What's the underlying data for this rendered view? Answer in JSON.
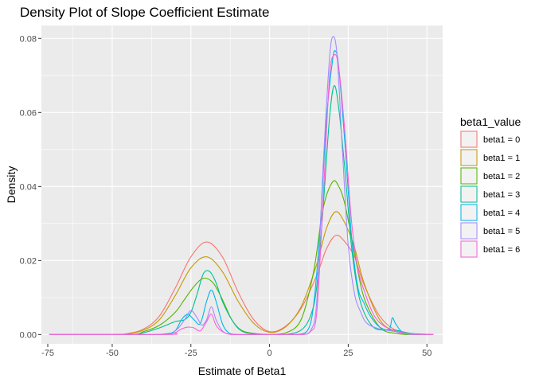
{
  "chart_data": {
    "type": "line",
    "title": "Density Plot of Slope Coefficient Estimate",
    "xlabel": "Estimate of Beta1",
    "ylabel": "Density",
    "xlim": [
      -72.5,
      55
    ],
    "ylim": [
      -0.0025,
      0.0835
    ],
    "x_ticks": [
      -75,
      -50,
      -25,
      0,
      25,
      50
    ],
    "y_ticks": [
      0,
      0.02,
      0.04,
      0.06,
      0.08
    ],
    "x_tick_labels": [
      "-75",
      "-50",
      "-25",
      "0",
      "25",
      "50"
    ],
    "y_tick_labels": [
      "0.00",
      "0.02",
      "0.04",
      "0.06",
      "0.08"
    ],
    "grid": true,
    "legend": {
      "title": "beta1_value",
      "position": "right"
    },
    "series": [
      {
        "name": "beta1 = 0",
        "color": "#F8766D",
        "x": [
          -70,
          -50,
          -45,
          -40,
          -35,
          -30,
          -25,
          -20,
          -15,
          -10,
          -5,
          0,
          5,
          10,
          15,
          18,
          21,
          24,
          27,
          30,
          35,
          40,
          45,
          50,
          52
        ],
        "y": [
          0,
          0,
          0.0003,
          0.0015,
          0.005,
          0.0125,
          0.021,
          0.025,
          0.021,
          0.0115,
          0.004,
          0.0008,
          0.0022,
          0.007,
          0.016,
          0.023,
          0.0268,
          0.025,
          0.021,
          0.0135,
          0.005,
          0.0012,
          0.0002,
          0,
          0
        ]
      },
      {
        "name": "beta1 = 1",
        "color": "#C49A00",
        "x": [
          -70,
          -50,
          -45,
          -40,
          -35,
          -30,
          -25,
          -20,
          -15,
          -10,
          -5,
          0,
          5,
          10,
          15,
          18,
          21,
          24,
          27,
          30,
          35,
          40,
          45,
          50,
          52
        ],
        "y": [
          0,
          0,
          0.0002,
          0.0012,
          0.004,
          0.0105,
          0.018,
          0.021,
          0.017,
          0.009,
          0.003,
          0.0006,
          0.002,
          0.0075,
          0.019,
          0.0285,
          0.0332,
          0.03,
          0.0235,
          0.014,
          0.004,
          0.0008,
          0.0001,
          0,
          0
        ]
      },
      {
        "name": "beta1 = 2",
        "color": "#53B400",
        "x": [
          -70,
          -45,
          -40,
          -35,
          -30,
          -27,
          -24,
          -21,
          -18,
          -15,
          -12,
          -9,
          -5,
          0,
          5,
          10,
          14,
          17,
          20,
          22,
          24,
          27,
          30,
          35,
          40,
          45,
          52
        ],
        "y": [
          0,
          0,
          0.0008,
          0.0025,
          0.006,
          0.0095,
          0.013,
          0.0152,
          0.014,
          0.0095,
          0.004,
          0.0012,
          0.0003,
          0,
          0.0004,
          0.004,
          0.017,
          0.034,
          0.0412,
          0.04,
          0.035,
          0.022,
          0.01,
          0.002,
          0.0003,
          0,
          0
        ]
      },
      {
        "name": "beta1 = 3",
        "color": "#00C094",
        "x": [
          -70,
          -45,
          -40,
          -35,
          -30,
          -27,
          -25,
          -23,
          -21,
          -19,
          -17,
          -15,
          -12,
          -9,
          -5,
          0,
          5,
          10,
          13,
          15,
          17,
          19,
          20.5,
          22,
          24,
          26,
          28,
          30,
          33,
          36,
          40,
          45,
          52
        ],
        "y": [
          0,
          0,
          0.0005,
          0.0018,
          0.0035,
          0.004,
          0.006,
          0.011,
          0.0165,
          0.017,
          0.014,
          0.009,
          0.004,
          0.001,
          0.0002,
          0,
          0,
          0.0012,
          0.005,
          0.013,
          0.034,
          0.058,
          0.0672,
          0.061,
          0.044,
          0.024,
          0.012,
          0.006,
          0.002,
          0.0012,
          0.0012,
          0.0003,
          0
        ]
      },
      {
        "name": "beta1 = 4",
        "color": "#00B6EB",
        "x": [
          -70,
          -40,
          -33,
          -30,
          -28,
          -26,
          -24,
          -22,
          -20,
          -18.5,
          -17,
          -15,
          -13,
          -10,
          -5,
          0,
          8,
          12,
          14,
          16,
          18,
          20,
          21,
          22,
          24,
          26,
          28,
          30,
          32,
          35,
          38,
          39,
          40,
          42,
          45,
          52
        ],
        "y": [
          0,
          0,
          0.0002,
          0.001,
          0.004,
          0.0055,
          0.004,
          0.003,
          0.009,
          0.012,
          0.009,
          0.003,
          0.0005,
          0,
          0,
          0,
          0,
          0.001,
          0.008,
          0.028,
          0.057,
          0.074,
          0.0765,
          0.072,
          0.051,
          0.027,
          0.013,
          0.0085,
          0.005,
          0.002,
          0.0015,
          0.0045,
          0.003,
          0.0008,
          0.0002,
          0
        ]
      },
      {
        "name": "beta1 = 5",
        "color": "#A58AFF",
        "x": [
          -70,
          -35,
          -30,
          -27,
          -25,
          -23,
          -21.5,
          -20,
          -18.5,
          -17,
          -15,
          -12,
          -5,
          0,
          10,
          13,
          15,
          17,
          19,
          20.2,
          21.5,
          23,
          25,
          27,
          29,
          31,
          35,
          40,
          45,
          52
        ],
        "y": [
          0,
          0,
          0.001,
          0.004,
          0.0065,
          0.0045,
          0.0025,
          0.004,
          0.0075,
          0.004,
          0.001,
          0,
          0,
          0,
          0,
          0.001,
          0.009,
          0.045,
          0.074,
          0.0805,
          0.075,
          0.052,
          0.024,
          0.011,
          0.006,
          0.003,
          0.0015,
          0.0008,
          0,
          0
        ]
      },
      {
        "name": "beta1 = 6",
        "color": "#FB61D7",
        "x": [
          -70,
          -33,
          -30,
          -28,
          -26,
          -24,
          -22,
          -20,
          -18.5,
          -17,
          -15,
          -12,
          -5,
          0,
          10,
          13,
          15,
          17,
          19,
          20.5,
          22,
          24,
          26,
          28,
          30,
          33,
          36,
          40,
          45,
          52
        ],
        "y": [
          0,
          0,
          0.0005,
          0.0015,
          0.002,
          0.0018,
          0.001,
          0.0035,
          0.0055,
          0.0025,
          0.0008,
          0,
          0,
          0,
          0,
          0.0008,
          0.006,
          0.036,
          0.069,
          0.0755,
          0.072,
          0.054,
          0.031,
          0.018,
          0.012,
          0.0055,
          0.0025,
          0.001,
          0.0002,
          0
        ]
      }
    ]
  }
}
